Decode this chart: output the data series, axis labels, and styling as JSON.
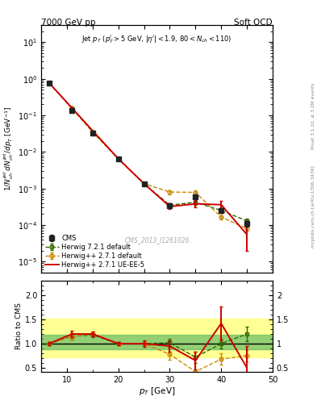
{
  "title_left": "7000 GeV pp",
  "title_right": "Soft QCD",
  "cms_watermark": "CMS_2013_I1261026",
  "rivet_label": "Rivet 3.1.10, ≥ 3.2M events",
  "mcplots_label": "mcplots.cern.ch [arXiv:1306.3436]",
  "cms_x": [
    6.5,
    11,
    15,
    20,
    25,
    30,
    35,
    40,
    45
  ],
  "cms_y": [
    0.78,
    0.135,
    0.033,
    0.0065,
    0.00135,
    0.00034,
    0.00058,
    0.00025,
    0.00011
  ],
  "cms_yerr": [
    0.04,
    0.008,
    0.002,
    0.0003,
    8e-05,
    5e-05,
    8e-05,
    4e-05,
    2e-05
  ],
  "hw271d_x": [
    6.5,
    11,
    15,
    20,
    25,
    30,
    35,
    40,
    45
  ],
  "hw271d_y": [
    0.78,
    0.155,
    0.035,
    0.0065,
    0.00135,
    0.0008,
    0.00078,
    0.000165,
    8e-05
  ],
  "hw271d_yerr": [
    0.01,
    0.005,
    0.001,
    0.0001,
    4e-05,
    0.0001,
    0.0001,
    2e-05,
    1e-05
  ],
  "hw271ue_x": [
    6.5,
    11,
    15,
    20,
    25,
    30,
    35,
    40,
    45
  ],
  "hw271ue_y": [
    0.78,
    0.158,
    0.038,
    0.0065,
    0.00135,
    0.00032,
    0.00038,
    0.00036,
    5.5e-05
  ],
  "hw271ue_yerr": [
    0.01,
    0.005,
    0.001,
    0.0001,
    4e-05,
    5e-05,
    7e-05,
    0.0001,
    3.5e-05
  ],
  "hw721d_x": [
    6.5,
    11,
    15,
    20,
    25,
    30,
    35,
    40,
    45
  ],
  "hw721d_y": [
    0.78,
    0.155,
    0.035,
    0.0065,
    0.00135,
    0.00035,
    0.00042,
    0.00025,
    0.00013
  ],
  "hw721d_yerr": [
    0.01,
    0.005,
    0.001,
    0.0001,
    4e-05,
    5e-05,
    7e-05,
    4e-05,
    2e-05
  ],
  "ratio_hw271d_x": [
    6.5,
    11,
    15,
    20,
    25,
    30,
    35,
    40,
    45
  ],
  "ratio_hw271d_y": [
    1.0,
    1.15,
    1.2,
    1.0,
    1.0,
    0.78,
    0.42,
    0.68,
    0.75
  ],
  "ratio_hw271d_yerr": [
    0.04,
    0.06,
    0.05,
    0.04,
    0.05,
    0.12,
    0.18,
    0.12,
    0.12
  ],
  "ratio_hw271ue_x": [
    6.5,
    11,
    15,
    20,
    25,
    30,
    35,
    40,
    45
  ],
  "ratio_hw271ue_y": [
    1.0,
    1.2,
    1.2,
    1.0,
    1.0,
    0.95,
    0.65,
    1.42,
    0.5
  ],
  "ratio_hw271ue_yerr": [
    0.04,
    0.06,
    0.05,
    0.04,
    0.07,
    0.12,
    0.18,
    0.35,
    0.45
  ],
  "ratio_hw721d_x": [
    6.5,
    11,
    15,
    20,
    25,
    30,
    35,
    40,
    45
  ],
  "ratio_hw721d_y": [
    1.0,
    1.15,
    1.18,
    1.0,
    1.0,
    1.02,
    0.72,
    1.0,
    1.2
  ],
  "ratio_hw721d_yerr": [
    0.04,
    0.06,
    0.05,
    0.04,
    0.04,
    0.08,
    0.12,
    0.1,
    0.15
  ],
  "color_cms": "#222222",
  "color_hw271d": "#cc8800",
  "color_hw271ue": "#cc0000",
  "color_hw721d": "#336600",
  "xlim": [
    5,
    50
  ],
  "ylim_main": [
    5e-06,
    30
  ],
  "ylim_ratio": [
    0.42,
    2.3
  ],
  "yellow_band": [
    0.72,
    1.52
  ],
  "green_band": [
    0.88,
    1.18
  ],
  "background_color": "#ffffff"
}
